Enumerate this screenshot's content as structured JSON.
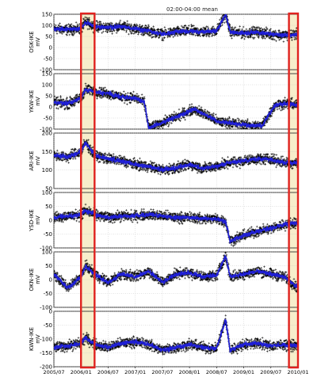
{
  "title": "02:00-04:00 mean",
  "x_tick_labels": [
    "2005/07",
    "2006/01",
    "2006/07",
    "2007/01",
    "2007/07",
    "2008/01",
    "2008/07",
    "2009/01",
    "2009/07",
    "2010/01"
  ],
  "colors": {
    "points": "#000000",
    "mean_line": "#1f1fd6",
    "highlight_fill": "#f7eecb",
    "highlight_border": "#e0221e",
    "grid": "#b8b8b8"
  },
  "highlights": [
    {
      "start": "2006/01",
      "end": "2006/04"
    },
    {
      "start": "2009/11",
      "end": "2010/01"
    }
  ],
  "chart_data": [
    {
      "type": "scatter",
      "ylabel": "OSK-IKE mV",
      "ylim": [
        -100,
        150
      ],
      "yticks": [
        -100,
        -50,
        0,
        50,
        100,
        150
      ],
      "series_points": "black crosses",
      "series_line": "blue running mean",
      "x": [
        "2005/07",
        "2005/10",
        "2006/01",
        "2006/02",
        "2006/04",
        "2006/07",
        "2006/10",
        "2007/01",
        "2007/04",
        "2007/07",
        "2007/10",
        "2008/01",
        "2008/04",
        "2008/07",
        "2008/09",
        "2008/10",
        "2009/01",
        "2009/04",
        "2009/07",
        "2009/10",
        "2010/01"
      ],
      "y": [
        85,
        80,
        85,
        115,
        95,
        90,
        95,
        85,
        75,
        60,
        70,
        75,
        70,
        75,
        150,
        70,
        65,
        70,
        60,
        55,
        60
      ]
    },
    {
      "type": "scatter",
      "ylabel": "YKW-IKE mV",
      "ylim": [
        -100,
        150
      ],
      "yticks": [
        -100,
        -50,
        0,
        50,
        100,
        150
      ],
      "x": [
        "2005/07",
        "2005/10",
        "2006/01",
        "2006/02",
        "2006/04",
        "2006/07",
        "2006/10",
        "2007/01",
        "2007/03",
        "2007/04",
        "2007/06",
        "2008/02",
        "2008/04",
        "2008/06",
        "2008/07",
        "2009/03",
        "2009/05",
        "2009/08",
        "2009/10",
        "2010/01"
      ],
      "y": [
        20,
        15,
        40,
        80,
        70,
        60,
        45,
        40,
        20,
        -95,
        -80,
        -10,
        -30,
        -50,
        -65,
        -85,
        -85,
        10,
        15,
        10
      ]
    },
    {
      "type": "scatter",
      "ylabel": "ARI-IKE mV",
      "ylim": [
        50,
        200
      ],
      "yticks": [
        50,
        100,
        150,
        200
      ],
      "x": [
        "2005/07",
        "2005/10",
        "2006/01",
        "2006/02",
        "2006/04",
        "2006/07",
        "2006/10",
        "2007/01",
        "2007/04",
        "2007/07",
        "2007/10",
        "2008/01",
        "2008/04",
        "2008/07",
        "2008/10",
        "2009/01",
        "2009/04",
        "2009/07",
        "2009/10",
        "2010/01"
      ],
      "y": [
        140,
        135,
        150,
        175,
        140,
        130,
        125,
        115,
        110,
        100,
        105,
        115,
        105,
        110,
        120,
        125,
        130,
        130,
        120,
        120
      ]
    },
    {
      "type": "scatter",
      "ylabel": "YSD-IKE mV",
      "ylim": [
        -100,
        100
      ],
      "yticks": [
        -100,
        -50,
        0,
        50,
        100
      ],
      "x": [
        "2005/07",
        "2005/10",
        "2006/01",
        "2006/02",
        "2006/04",
        "2006/07",
        "2006/10",
        "2007/01",
        "2007/04",
        "2007/07",
        "2007/10",
        "2008/01",
        "2008/04",
        "2008/07",
        "2008/09",
        "2008/10",
        "2009/01",
        "2009/04",
        "2009/07",
        "2009/10",
        "2010/01"
      ],
      "y": [
        10,
        15,
        20,
        35,
        20,
        10,
        15,
        15,
        20,
        15,
        10,
        10,
        5,
        5,
        -5,
        -75,
        -55,
        -40,
        -30,
        -15,
        -10
      ]
    },
    {
      "type": "scatter",
      "ylabel": "OKN-IKE mV",
      "ylim": [
        -100,
        100
      ],
      "yticks": [
        -100,
        -50,
        0,
        50,
        100
      ],
      "x": [
        "2005/07",
        "2005/10",
        "2006/01",
        "2006/02",
        "2006/04",
        "2006/07",
        "2006/10",
        "2007/01",
        "2007/04",
        "2007/07",
        "2007/10",
        "2008/01",
        "2008/04",
        "2008/07",
        "2008/09",
        "2008/10",
        "2009/01",
        "2009/04",
        "2009/07",
        "2009/10",
        "2010/01"
      ],
      "y": [
        20,
        -30,
        10,
        50,
        20,
        -10,
        20,
        10,
        30,
        -10,
        20,
        25,
        10,
        15,
        85,
        10,
        20,
        30,
        20,
        10,
        -30
      ]
    },
    {
      "type": "scatter",
      "ylabel": "KWN-IKE mV",
      "ylim": [
        -200,
        0
      ],
      "yticks": [
        -200,
        -150,
        -100,
        -50,
        0
      ],
      "x": [
        "2005/07",
        "2005/10",
        "2006/01",
        "2006/02",
        "2006/04",
        "2006/07",
        "2006/10",
        "2007/01",
        "2007/04",
        "2007/07",
        "2007/10",
        "2008/01",
        "2008/04",
        "2008/07",
        "2008/09",
        "2008/10",
        "2009/01",
        "2009/04",
        "2009/07",
        "2009/10",
        "2010/01"
      ],
      "y": [
        -130,
        -125,
        -115,
        -95,
        -120,
        -130,
        -115,
        -110,
        -120,
        -140,
        -130,
        -120,
        -130,
        -135,
        -30,
        -140,
        -120,
        -115,
        -125,
        -120,
        -125
      ]
    }
  ]
}
